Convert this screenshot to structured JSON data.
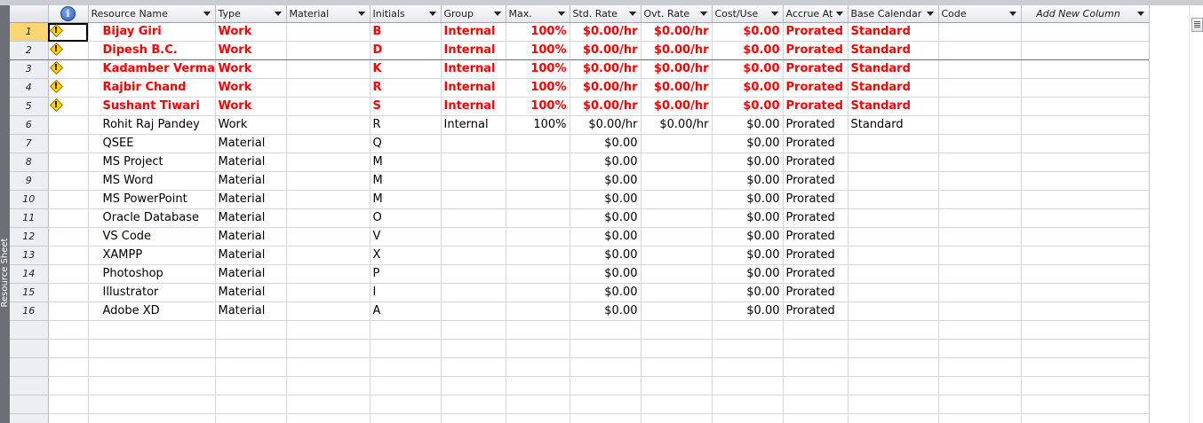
{
  "view": {
    "sidebar_label": "Resource Sheet"
  },
  "columns": {
    "info": "i",
    "name": "Resource Name",
    "type": "Type",
    "material": "Material",
    "initials": "Initials",
    "group": "Group",
    "max": "Max.",
    "std": "Std. Rate",
    "ovt": "Ovt. Rate",
    "cost": "Cost/Use",
    "accrue": "Accrue At",
    "cal": "Base Calendar",
    "code": "Code",
    "add": "Add New Column"
  },
  "colors": {
    "overallocated": "#ff0000",
    "selected_row": "#fbd774"
  },
  "rows": [
    {
      "id": "1",
      "warn": true,
      "name": "Bijay Giri",
      "type": "Work",
      "material": "",
      "initials": "B",
      "group": "Internal",
      "max": "100%",
      "std": "$0.00/hr",
      "ovt": "$0.00/hr",
      "cost": "$0.00",
      "accrue": "Prorated",
      "cal": "Standard",
      "code": ""
    },
    {
      "id": "2",
      "warn": true,
      "name": "Dipesh B.C.",
      "type": "Work",
      "material": "",
      "initials": "D",
      "group": "Internal",
      "max": "100%",
      "std": "$0.00/hr",
      "ovt": "$0.00/hr",
      "cost": "$0.00",
      "accrue": "Prorated",
      "cal": "Standard",
      "code": ""
    },
    {
      "id": "3",
      "warn": true,
      "name": "Kadamber Verma",
      "type": "Work",
      "material": "",
      "initials": "K",
      "group": "Internal",
      "max": "100%",
      "std": "$0.00/hr",
      "ovt": "$0.00/hr",
      "cost": "$0.00",
      "accrue": "Prorated",
      "cal": "Standard",
      "code": ""
    },
    {
      "id": "4",
      "warn": true,
      "name": "Rajbir Chand",
      "type": "Work",
      "material": "",
      "initials": "R",
      "group": "Internal",
      "max": "100%",
      "std": "$0.00/hr",
      "ovt": "$0.00/hr",
      "cost": "$0.00",
      "accrue": "Prorated",
      "cal": "Standard",
      "code": ""
    },
    {
      "id": "5",
      "warn": true,
      "name": "Sushant Tiwari",
      "type": "Work",
      "material": "",
      "initials": "S",
      "group": "Internal",
      "max": "100%",
      "std": "$0.00/hr",
      "ovt": "$0.00/hr",
      "cost": "$0.00",
      "accrue": "Prorated",
      "cal": "Standard",
      "code": ""
    },
    {
      "id": "6",
      "warn": false,
      "name": "Rohit Raj Pandey",
      "type": "Work",
      "material": "",
      "initials": "R",
      "group": "Internal",
      "max": "100%",
      "std": "$0.00/hr",
      "ovt": "$0.00/hr",
      "cost": "$0.00",
      "accrue": "Prorated",
      "cal": "Standard",
      "code": ""
    },
    {
      "id": "7",
      "warn": false,
      "name": "QSEE",
      "type": "Material",
      "material": "",
      "initials": "Q",
      "group": "",
      "max": "",
      "std": "$0.00",
      "ovt": "",
      "cost": "$0.00",
      "accrue": "Prorated",
      "cal": "",
      "code": ""
    },
    {
      "id": "8",
      "warn": false,
      "name": "MS Project",
      "type": "Material",
      "material": "",
      "initials": "M",
      "group": "",
      "max": "",
      "std": "$0.00",
      "ovt": "",
      "cost": "$0.00",
      "accrue": "Prorated",
      "cal": "",
      "code": ""
    },
    {
      "id": "9",
      "warn": false,
      "name": "MS Word",
      "type": "Material",
      "material": "",
      "initials": "M",
      "group": "",
      "max": "",
      "std": "$0.00",
      "ovt": "",
      "cost": "$0.00",
      "accrue": "Prorated",
      "cal": "",
      "code": ""
    },
    {
      "id": "10",
      "warn": false,
      "name": "MS PowerPoint",
      "type": "Material",
      "material": "",
      "initials": "M",
      "group": "",
      "max": "",
      "std": "$0.00",
      "ovt": "",
      "cost": "$0.00",
      "accrue": "Prorated",
      "cal": "",
      "code": ""
    },
    {
      "id": "11",
      "warn": false,
      "name": "Oracle Database",
      "type": "Material",
      "material": "",
      "initials": "O",
      "group": "",
      "max": "",
      "std": "$0.00",
      "ovt": "",
      "cost": "$0.00",
      "accrue": "Prorated",
      "cal": "",
      "code": ""
    },
    {
      "id": "12",
      "warn": false,
      "name": "VS Code",
      "type": "Material",
      "material": "",
      "initials": "V",
      "group": "",
      "max": "",
      "std": "$0.00",
      "ovt": "",
      "cost": "$0.00",
      "accrue": "Prorated",
      "cal": "",
      "code": ""
    },
    {
      "id": "13",
      "warn": false,
      "name": "XAMPP",
      "type": "Material",
      "material": "",
      "initials": "X",
      "group": "",
      "max": "",
      "std": "$0.00",
      "ovt": "",
      "cost": "$0.00",
      "accrue": "Prorated",
      "cal": "",
      "code": ""
    },
    {
      "id": "14",
      "warn": false,
      "name": "Photoshop",
      "type": "Material",
      "material": "",
      "initials": "P",
      "group": "",
      "max": "",
      "std": "$0.00",
      "ovt": "",
      "cost": "$0.00",
      "accrue": "Prorated",
      "cal": "",
      "code": ""
    },
    {
      "id": "15",
      "warn": false,
      "name": "Illustrator",
      "type": "Material",
      "material": "",
      "initials": "I",
      "group": "",
      "max": "",
      "std": "$0.00",
      "ovt": "",
      "cost": "$0.00",
      "accrue": "Prorated",
      "cal": "",
      "code": ""
    },
    {
      "id": "16",
      "warn": false,
      "name": "Adobe XD",
      "type": "Material",
      "material": "",
      "initials": "A",
      "group": "",
      "max": "",
      "std": "$0.00",
      "ovt": "",
      "cost": "$0.00",
      "accrue": "Prorated",
      "cal": "",
      "code": ""
    }
  ]
}
